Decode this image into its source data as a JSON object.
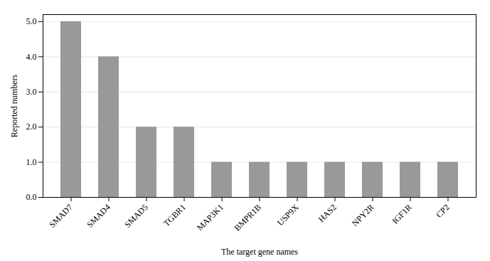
{
  "chart_data": {
    "type": "bar",
    "categories": [
      "SMAD7",
      "SMAD4",
      "SMAD5",
      "TGBR1",
      "MAP3K1",
      "BMPR1B",
      "USP9X",
      "HAS2",
      "NPY2R",
      "IGF1R",
      "CP2"
    ],
    "values": [
      5,
      4,
      2,
      2,
      1,
      1,
      1,
      1,
      1,
      1,
      1
    ],
    "color": "#999999",
    "xlabel": "The target gene names",
    "ylabel": "Reported numbers",
    "ylim": [
      0,
      5.2
    ],
    "yticks": [
      0,
      1,
      2,
      3,
      4,
      5
    ],
    "grid": true
  }
}
